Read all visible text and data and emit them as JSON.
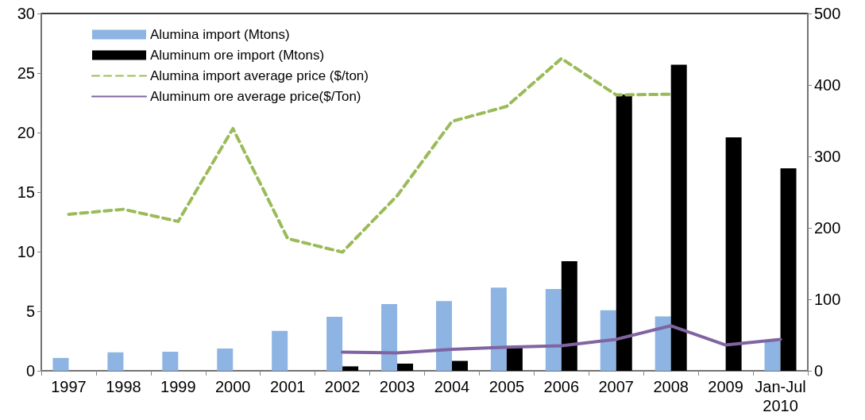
{
  "chart_data": {
    "type": "bar",
    "categories": [
      "1997",
      "1998",
      "1999",
      "2000",
      "2001",
      "2002",
      "2003",
      "2004",
      "2005",
      "2006",
      "2007",
      "2008",
      "2009",
      "Jan-Jul\n2010"
    ],
    "series": [
      {
        "name": "Alumina import (Mtons)",
        "color": "#8db4e2",
        "values": [
          1.08,
          1.55,
          1.6,
          1.87,
          3.35,
          4.54,
          5.6,
          5.85,
          6.98,
          6.87,
          5.09,
          4.56,
          null,
          2.5
        ]
      },
      {
        "name": "Aluminum ore import (Mtons)",
        "color": "#000000",
        "values": [
          null,
          null,
          null,
          null,
          null,
          0.37,
          0.6,
          0.83,
          2.0,
          9.2,
          23.2,
          25.7,
          19.6,
          17.0
        ]
      },
      {
        "name": "Alumina import average price ($/ton)",
        "type": "line",
        "axis": "y2",
        "line_style": "dashed",
        "color": "#9bbb59",
        "values": [
          219,
          226,
          209,
          339,
          185,
          166,
          245,
          349,
          370,
          437,
          386,
          387,
          null,
          null
        ]
      },
      {
        "name": "Aluminum ore average price($/Ton)",
        "type": "line",
        "axis": "y2",
        "line_style": "solid",
        "color": "#8064a2",
        "values": [
          null,
          null,
          null,
          null,
          null,
          26,
          25,
          30,
          33,
          35,
          44,
          63,
          36,
          44
        ]
      }
    ],
    "ylim": [
      0,
      30
    ],
    "yticks": [
      0,
      5,
      10,
      15,
      20,
      25,
      30
    ],
    "y2lim": [
      0,
      500
    ],
    "y2ticks": [
      0,
      100,
      200,
      300,
      400,
      500
    ],
    "grid": false,
    "legend": "top left",
    "marker": "none"
  }
}
